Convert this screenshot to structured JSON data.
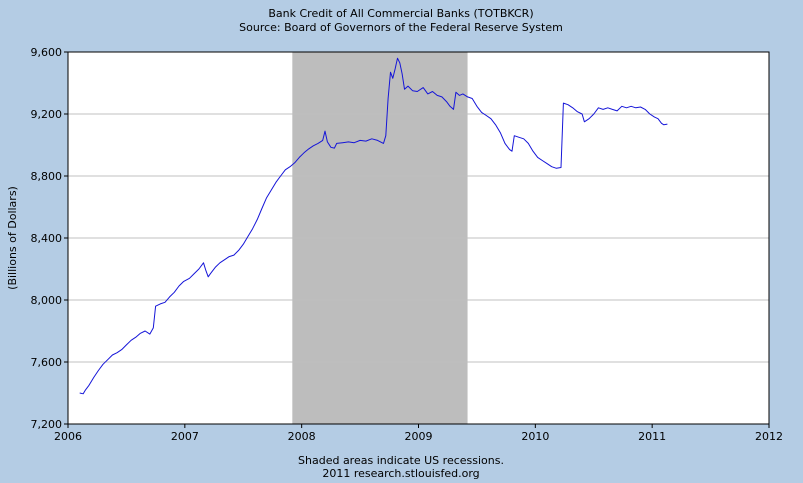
{
  "chart_data": {
    "type": "line",
    "title": "Bank Credit of All Commercial Banks (TOTBKCR)",
    "subtitle": "Source: Board of Governors of the Federal Reserve System",
    "xlabel": "",
    "ylabel": "(Billions of Dollars)",
    "xlim": [
      2006,
      2012
    ],
    "ylim": [
      7200,
      9600
    ],
    "x_ticks": [
      "2006",
      "2007",
      "2008",
      "2009",
      "2010",
      "2011",
      "2012"
    ],
    "y_ticks": [
      "7,200",
      "7,600",
      "8,000",
      "8,400",
      "8,800",
      "9,200",
      "9,600"
    ],
    "grid": "horizontal",
    "recessions": [
      {
        "start": 2007.92,
        "end": 2009.42
      }
    ],
    "footer_note": "Shaded areas indicate US recessions.",
    "footer_source": "2011 research.stlouisfed.org",
    "colors": {
      "line": "#1515d8",
      "recession": "#bdbdbd",
      "plot_bg": "#ffffff",
      "frame_bg": "#b4cce4",
      "grid": "#c0c0c0"
    },
    "series": [
      {
        "values": [
          [
            2006.1,
            7400
          ],
          [
            2006.13,
            7395
          ],
          [
            2006.15,
            7420
          ],
          [
            2006.18,
            7450
          ],
          [
            2006.22,
            7500
          ],
          [
            2006.26,
            7545
          ],
          [
            2006.3,
            7585
          ],
          [
            2006.34,
            7615
          ],
          [
            2006.38,
            7645
          ],
          [
            2006.42,
            7660
          ],
          [
            2006.46,
            7680
          ],
          [
            2006.5,
            7710
          ],
          [
            2006.54,
            7740
          ],
          [
            2006.58,
            7760
          ],
          [
            2006.62,
            7785
          ],
          [
            2006.66,
            7800
          ],
          [
            2006.7,
            7780
          ],
          [
            2006.73,
            7820
          ],
          [
            2006.75,
            7960
          ],
          [
            2006.79,
            7975
          ],
          [
            2006.83,
            7985
          ],
          [
            2006.87,
            8020
          ],
          [
            2006.91,
            8050
          ],
          [
            2006.95,
            8090
          ],
          [
            2006.99,
            8120
          ],
          [
            2007.04,
            8140
          ],
          [
            2007.08,
            8170
          ],
          [
            2007.12,
            8200
          ],
          [
            2007.16,
            8240
          ],
          [
            2007.18,
            8190
          ],
          [
            2007.2,
            8150
          ],
          [
            2007.22,
            8170
          ],
          [
            2007.26,
            8210
          ],
          [
            2007.3,
            8240
          ],
          [
            2007.34,
            8260
          ],
          [
            2007.38,
            8280
          ],
          [
            2007.42,
            8290
          ],
          [
            2007.46,
            8320
          ],
          [
            2007.5,
            8360
          ],
          [
            2007.54,
            8410
          ],
          [
            2007.58,
            8460
          ],
          [
            2007.62,
            8520
          ],
          [
            2007.66,
            8590
          ],
          [
            2007.7,
            8660
          ],
          [
            2007.74,
            8710
          ],
          [
            2007.78,
            8760
          ],
          [
            2007.82,
            8800
          ],
          [
            2007.86,
            8840
          ],
          [
            2007.9,
            8860
          ],
          [
            2007.94,
            8885
          ],
          [
            2007.98,
            8920
          ],
          [
            2008.02,
            8950
          ],
          [
            2008.06,
            8975
          ],
          [
            2008.1,
            8995
          ],
          [
            2008.14,
            9010
          ],
          [
            2008.18,
            9030
          ],
          [
            2008.2,
            9090
          ],
          [
            2008.22,
            9020
          ],
          [
            2008.25,
            8985
          ],
          [
            2008.28,
            8980
          ],
          [
            2008.3,
            9010
          ],
          [
            2008.35,
            9015
          ],
          [
            2008.4,
            9020
          ],
          [
            2008.45,
            9015
          ],
          [
            2008.5,
            9030
          ],
          [
            2008.55,
            9025
          ],
          [
            2008.6,
            9040
          ],
          [
            2008.65,
            9030
          ],
          [
            2008.7,
            9010
          ],
          [
            2008.72,
            9060
          ],
          [
            2008.74,
            9300
          ],
          [
            2008.76,
            9470
          ],
          [
            2008.78,
            9430
          ],
          [
            2008.8,
            9490
          ],
          [
            2008.82,
            9560
          ],
          [
            2008.84,
            9530
          ],
          [
            2008.86,
            9460
          ],
          [
            2008.88,
            9360
          ],
          [
            2008.91,
            9380
          ],
          [
            2008.95,
            9350
          ],
          [
            2008.99,
            9345
          ],
          [
            2009.04,
            9370
          ],
          [
            2009.08,
            9330
          ],
          [
            2009.12,
            9345
          ],
          [
            2009.16,
            9320
          ],
          [
            2009.2,
            9310
          ],
          [
            2009.24,
            9280
          ],
          [
            2009.27,
            9250
          ],
          [
            2009.3,
            9230
          ],
          [
            2009.32,
            9340
          ],
          [
            2009.35,
            9320
          ],
          [
            2009.38,
            9330
          ],
          [
            2009.42,
            9310
          ],
          [
            2009.46,
            9300
          ],
          [
            2009.5,
            9250
          ],
          [
            2009.54,
            9210
          ],
          [
            2009.58,
            9190
          ],
          [
            2009.62,
            9170
          ],
          [
            2009.66,
            9130
          ],
          [
            2009.7,
            9080
          ],
          [
            2009.74,
            9010
          ],
          [
            2009.78,
            8970
          ],
          [
            2009.8,
            8960
          ],
          [
            2009.82,
            9060
          ],
          [
            2009.86,
            9050
          ],
          [
            2009.9,
            9040
          ],
          [
            2009.94,
            9010
          ],
          [
            2009.98,
            8960
          ],
          [
            2010.02,
            8920
          ],
          [
            2010.06,
            8900
          ],
          [
            2010.1,
            8880
          ],
          [
            2010.14,
            8860
          ],
          [
            2010.18,
            8850
          ],
          [
            2010.22,
            8855
          ],
          [
            2010.24,
            9270
          ],
          [
            2010.28,
            9260
          ],
          [
            2010.32,
            9240
          ],
          [
            2010.36,
            9215
          ],
          [
            2010.4,
            9200
          ],
          [
            2010.42,
            9150
          ],
          [
            2010.46,
            9170
          ],
          [
            2010.5,
            9200
          ],
          [
            2010.54,
            9240
          ],
          [
            2010.58,
            9230
          ],
          [
            2010.62,
            9240
          ],
          [
            2010.66,
            9230
          ],
          [
            2010.7,
            9220
          ],
          [
            2010.74,
            9250
          ],
          [
            2010.78,
            9240
          ],
          [
            2010.82,
            9250
          ],
          [
            2010.86,
            9240
          ],
          [
            2010.9,
            9245
          ],
          [
            2010.94,
            9230
          ],
          [
            2010.98,
            9200
          ],
          [
            2011.02,
            9180
          ],
          [
            2011.05,
            9170
          ],
          [
            2011.08,
            9140
          ],
          [
            2011.1,
            9130
          ],
          [
            2011.13,
            9135
          ]
        ]
      }
    ]
  }
}
